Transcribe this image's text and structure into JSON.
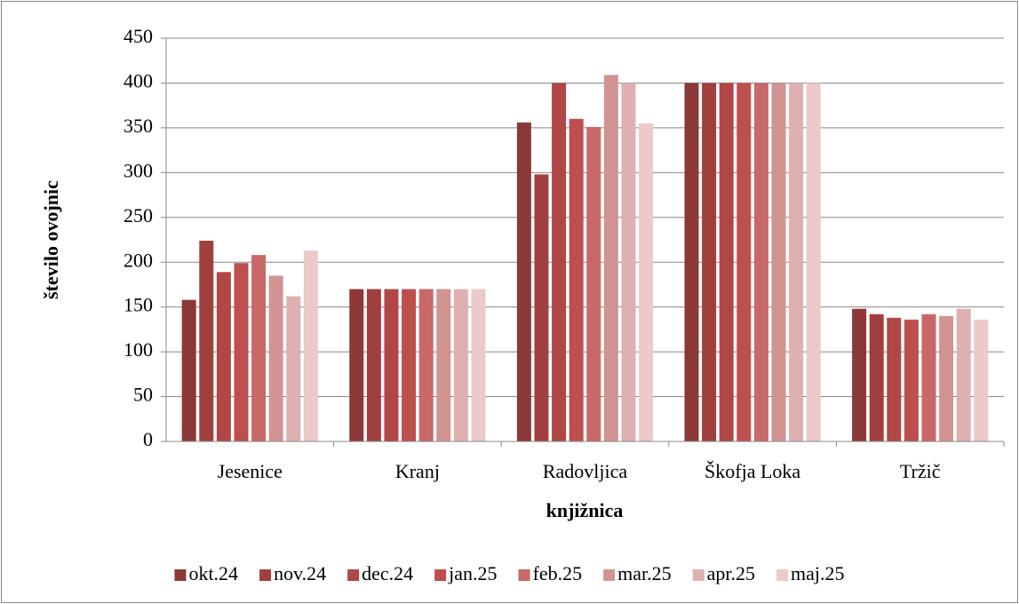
{
  "chart_data": {
    "type": "bar",
    "xlabel": "knjižnica",
    "ylabel": "število ovojnic",
    "categories": [
      "Jesenice",
      "Kranj",
      "Radovljica",
      "Škofja Loka",
      "Tržič"
    ],
    "series": [
      {
        "name": "okt.24",
        "color": "#8c3838",
        "values": [
          158,
          170,
          356,
          400,
          148
        ]
      },
      {
        "name": "nov.24",
        "color": "#a13f3f",
        "values": [
          224,
          170,
          298,
          400,
          142
        ]
      },
      {
        "name": "dec.24",
        "color": "#b04646",
        "values": [
          189,
          170,
          400,
          400,
          138
        ]
      },
      {
        "name": "jan.25",
        "color": "#bd4f4f",
        "values": [
          199,
          170,
          360,
          400,
          136
        ]
      },
      {
        "name": "feb.25",
        "color": "#c86868",
        "values": [
          208,
          170,
          351,
          400,
          142
        ]
      },
      {
        "name": "mar.25",
        "color": "#d29393",
        "values": [
          185,
          170,
          409,
          400,
          140
        ]
      },
      {
        "name": "apr.25",
        "color": "#deb0b0",
        "values": [
          162,
          170,
          400,
          400,
          148
        ]
      },
      {
        "name": "maj.25",
        "color": "#eccaca",
        "values": [
          213,
          170,
          355,
          400,
          136
        ]
      }
    ],
    "ylim": [
      0,
      450
    ],
    "yticks": [
      0,
      50,
      100,
      150,
      200,
      250,
      300,
      350,
      400,
      450
    ],
    "grid": true,
    "legend": "bottom"
  }
}
